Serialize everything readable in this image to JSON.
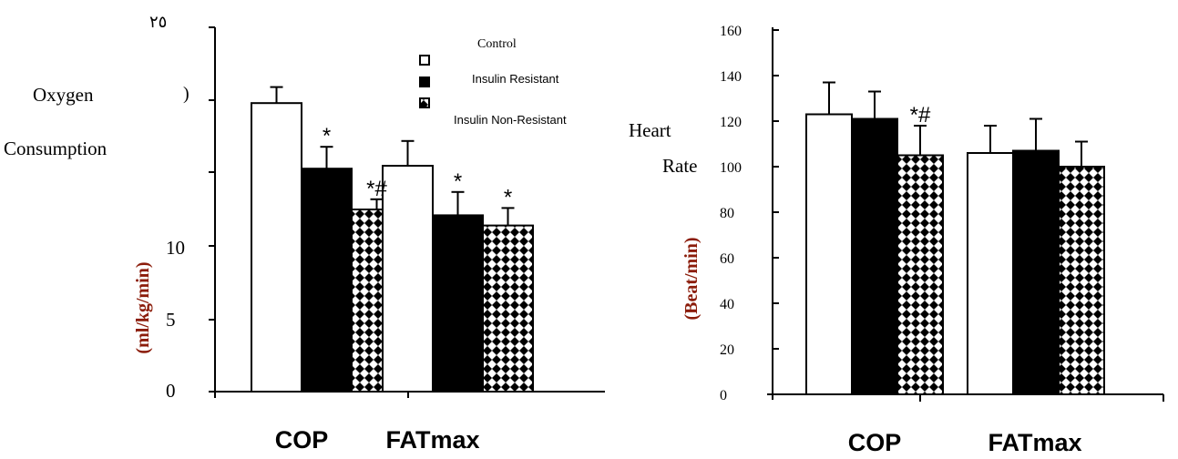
{
  "chart_data": [
    {
      "type": "bar",
      "title": "",
      "ylabel_lines": [
        "Oxygen",
        "Consumption"
      ],
      "ylabel_unit": "(ml/kg/min)",
      "categories": [
        "COP",
        "FATmax"
      ],
      "y_tick_labels": [
        "0",
        "5",
        "10",
        "",
        "",
        "",
        "٢٥"
      ],
      "top_tick_label": "٢٥",
      "stray_label": ")",
      "ylim": [
        0,
        25
      ],
      "series": [
        {
          "name": "Control",
          "values": [
            19.8,
            15.5
          ],
          "errors": [
            1.1,
            1.7
          ]
        },
        {
          "name": "Insulin Resistant",
          "values": [
            15.3,
            12.1
          ],
          "errors": [
            1.5,
            1.6
          ]
        },
        {
          "name": "Insulin Non-Resistant",
          "values": [
            12.5,
            11.4
          ],
          "errors": [
            0.7,
            1.2
          ]
        }
      ],
      "annotations": [
        {
          "category": 0,
          "series": 1,
          "text": "*"
        },
        {
          "category": 0,
          "series": 2,
          "text": "*#"
        },
        {
          "category": 1,
          "series": 1,
          "text": "*"
        },
        {
          "category": 1,
          "series": 2,
          "text": "*"
        }
      ],
      "legend": {
        "placement": "top-center",
        "entries": [
          "Control",
          "Insulin Resistant",
          "Insulin Non-Resistant"
        ]
      }
    },
    {
      "type": "bar",
      "title": "",
      "ylabel_lines": [
        "Heart",
        "Rate"
      ],
      "ylabel_unit": "(Beat/min)",
      "categories": [
        "COP",
        "FATmax"
      ],
      "y_tick_labels": [
        "0",
        "20",
        "40",
        "60",
        "80",
        "100",
        "120",
        "140",
        "160"
      ],
      "ylim": [
        0,
        160
      ],
      "series": [
        {
          "name": "Control",
          "values": [
            123,
            106
          ],
          "errors": [
            14,
            12
          ]
        },
        {
          "name": "Insulin Resistant",
          "values": [
            121,
            107
          ],
          "errors": [
            12,
            14
          ]
        },
        {
          "name": "Insulin Non-Resistant",
          "values": [
            105,
            100
          ],
          "errors": [
            13,
            11
          ]
        }
      ],
      "annotations": [
        {
          "category": 0,
          "series": 2,
          "text": "*#"
        }
      ]
    }
  ]
}
